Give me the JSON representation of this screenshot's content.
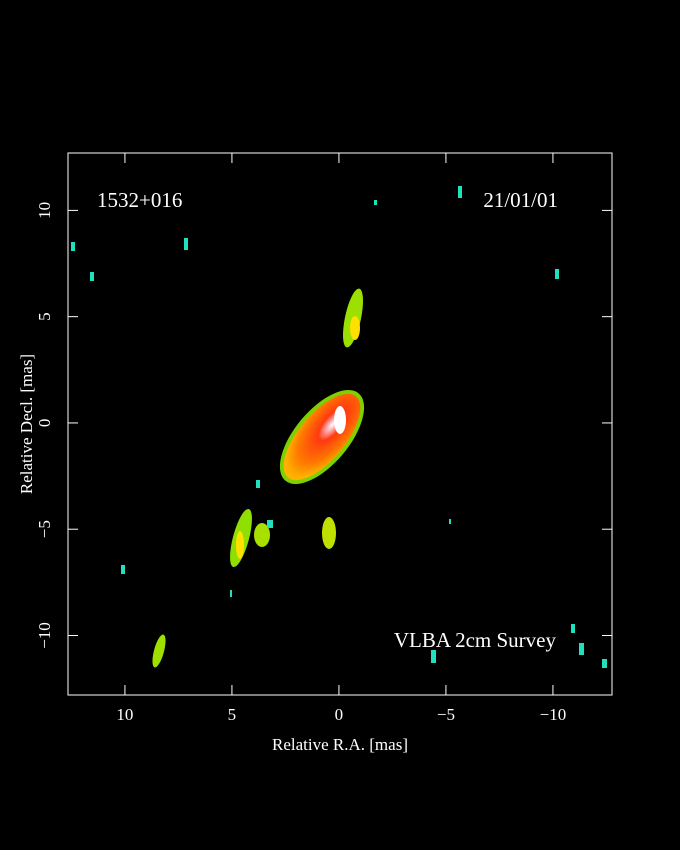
{
  "chart_data": {
    "type": "image",
    "source": "1532+016",
    "date": "21/01/01",
    "survey": "VLBA 2cm Survey",
    "x_label": "Relative R.A. [mas]",
    "y_label": "Relative Decl. [mas]",
    "xlim": [
      12.66,
      -12.76
    ],
    "xticks": [
      10,
      5,
      0,
      {
        "value": -5,
        "label": "−5"
      },
      {
        "value": -10,
        "label": "−10"
      }
    ],
    "ylim": [
      -12.8,
      12.7
    ],
    "yticks": [
      {
        "value": -10,
        "label": "−10"
      },
      {
        "value": -5,
        "label": "−5"
      },
      0,
      5,
      10
    ]
  }
}
